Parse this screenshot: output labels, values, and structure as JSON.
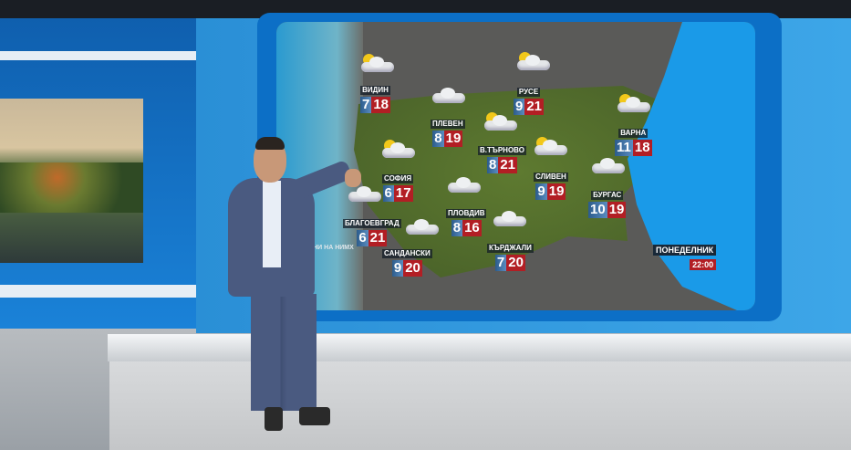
{
  "forecast": {
    "cities": [
      {
        "name": "ВИДИН",
        "min": "7",
        "max": "18",
        "icon": "partly-cloudy-icon"
      },
      {
        "name": "РУСЕ",
        "min": "9",
        "max": "21",
        "icon": "partly-cloudy-icon"
      },
      {
        "name": "ПЛЕВЕН",
        "min": "8",
        "max": "19",
        "icon": "cloud-icon"
      },
      {
        "name": "В.ТЪРНОВО",
        "min": "8",
        "max": "21",
        "icon": "partly-cloudy-icon"
      },
      {
        "name": "ВАРНА",
        "min": "11",
        "max": "18",
        "icon": "partly-cloudy-icon"
      },
      {
        "name": "СОФИЯ",
        "min": "6",
        "max": "17",
        "icon": "partly-cloudy-icon"
      },
      {
        "name": "СЛИВЕН",
        "min": "9",
        "max": "19",
        "icon": "partly-cloudy-icon"
      },
      {
        "name": "БУРГАС",
        "min": "10",
        "max": "19",
        "icon": "cloud-icon"
      },
      {
        "name": "БЛАГОЕВГРАД",
        "min": "6",
        "max": "21",
        "icon": "cloud-icon"
      },
      {
        "name": "ПЛОВДИВ",
        "min": "8",
        "max": "16",
        "icon": "cloud-icon"
      },
      {
        "name": "КЪРДЖАЛИ",
        "min": "7",
        "max": "20",
        "icon": "cloud-icon"
      },
      {
        "name": "САНДАНСКИ",
        "min": "9",
        "max": "20",
        "icon": "cloud-icon"
      }
    ],
    "day": "ПОНЕДЕЛНИК",
    "time": "22:00",
    "credit": "АННИ НА НИМХ"
  },
  "colors": {
    "min_temp": "#2c5c8c",
    "max_temp": "#b21e24",
    "sea": "#1a9ae8",
    "wall": "#2a8fd6"
  }
}
